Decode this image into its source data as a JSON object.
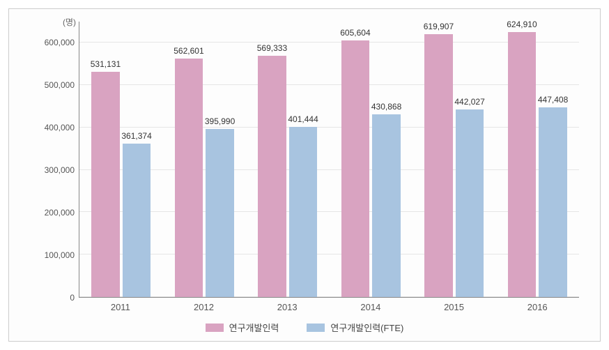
{
  "chart": {
    "type": "bar",
    "y_unit_label": "(명)",
    "categories": [
      "2011",
      "2012",
      "2013",
      "2014",
      "2015",
      "2016"
    ],
    "series": [
      {
        "name": "연구개발인력",
        "color": "#d9a3c1",
        "values": [
          531131,
          562601,
          569333,
          605604,
          619907,
          624910
        ],
        "labels": [
          "531,131",
          "562,601",
          "569,333",
          "605,604",
          "619,907",
          "624,910"
        ]
      },
      {
        "name": "연구개발인력(FTE)",
        "color": "#a8c4e0",
        "values": [
          361374,
          395990,
          401444,
          430868,
          442027,
          447408
        ],
        "labels": [
          "361,374",
          "395,990",
          "401,444",
          "430,868",
          "442,027",
          "447,408"
        ]
      }
    ],
    "y_ticks": [
      0,
      100000,
      200000,
      300000,
      400000,
      500000,
      600000
    ],
    "y_tick_labels": [
      "0",
      "100,000",
      "200,000",
      "300,000",
      "400,000",
      "500,000",
      "600,000"
    ],
    "ylim": [
      0,
      650000
    ],
    "background_color": "#fdfdfd",
    "grid_color": "#e5e5e5",
    "axis_color": "#888888",
    "text_color": "#555555",
    "label_fontsize": 12,
    "bar_width_pct": 34
  }
}
